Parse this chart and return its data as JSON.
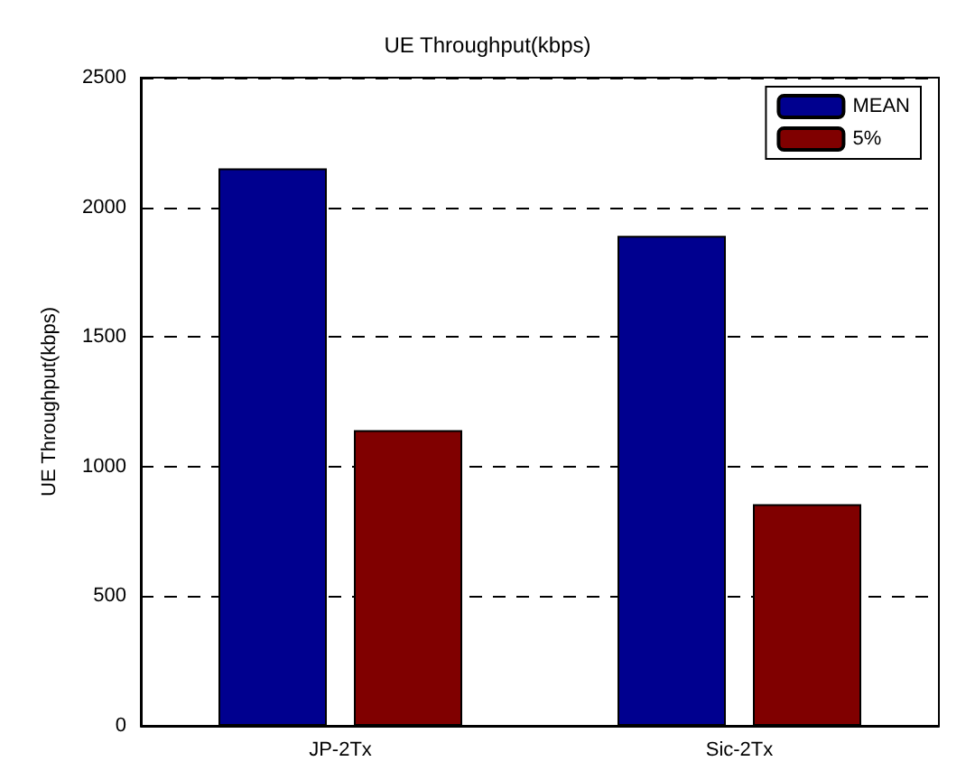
{
  "chart_data": {
    "type": "bar",
    "title": "UE Throughput(kbps)",
    "ylabel": "UE Throughput(kbps)",
    "categories": [
      "JP-2Tx",
      "Sic-2Tx"
    ],
    "series": [
      {
        "name": "MEAN",
        "color": "#00008f",
        "values": [
          2150,
          1890
        ]
      },
      {
        "name": "5%",
        "color": "#800000",
        "values": [
          1140,
          855
        ]
      }
    ],
    "ylim": [
      0,
      2500
    ],
    "yticks": [
      0,
      500,
      1000,
      1500,
      2000,
      2500
    ],
    "grid": "y",
    "line_style": "dashed",
    "legend": "top right"
  }
}
